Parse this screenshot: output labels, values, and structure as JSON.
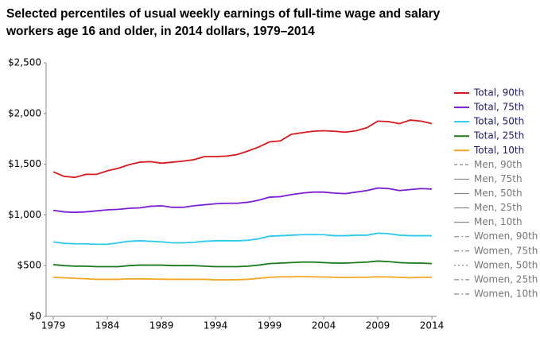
{
  "chart_data": {
    "type": "line",
    "title": [
      "Selected percentiles of usual weekly earnings of full-time wage and salary",
      "workers age 16 and older, in 2014 dollars, 1979–2014"
    ],
    "x": [
      1979,
      1980,
      1981,
      1982,
      1983,
      1984,
      1985,
      1986,
      1987,
      1988,
      1989,
      1990,
      1991,
      1992,
      1993,
      1994,
      1995,
      1996,
      1997,
      1998,
      1999,
      2000,
      2001,
      2002,
      2003,
      2004,
      2005,
      2006,
      2007,
      2008,
      2009,
      2010,
      2011,
      2012,
      2013,
      2014
    ],
    "xlim": [
      1979,
      2014
    ],
    "xticks": [
      1979,
      1984,
      1989,
      1994,
      1999,
      2004,
      2009,
      2014
    ],
    "ylim": [
      0,
      2500
    ],
    "yticks": [
      {
        "value": 0,
        "label": "$0"
      },
      {
        "value": 500,
        "label": "$500"
      },
      {
        "value": 1000,
        "label": "$1,000"
      },
      {
        "value": 1500,
        "label": "$1,500"
      },
      {
        "value": 2000,
        "label": "$2,000"
      },
      {
        "value": 2500,
        "label": "$2,500"
      }
    ],
    "grid": false,
    "legend": "right",
    "series": [
      {
        "name": "Total, 90th",
        "color": "#d7191c",
        "dash": "solid",
        "values": [
          1425,
          1380,
          1370,
          1400,
          1400,
          1435,
          1460,
          1495,
          1520,
          1525,
          1510,
          1520,
          1530,
          1545,
          1575,
          1575,
          1580,
          1595,
          1630,
          1670,
          1720,
          1730,
          1795,
          1810,
          1825,
          1830,
          1825,
          1815,
          1830,
          1860,
          1925,
          1920,
          1900,
          1935,
          1925,
          1900
        ]
      },
      {
        "name": "Total, 75th",
        "color": "#7b1fd6",
        "dash": "solid",
        "values": [
          1045,
          1030,
          1025,
          1030,
          1040,
          1050,
          1055,
          1065,
          1070,
          1085,
          1090,
          1075,
          1075,
          1090,
          1100,
          1110,
          1115,
          1115,
          1125,
          1145,
          1175,
          1180,
          1200,
          1215,
          1225,
          1225,
          1215,
          1210,
          1225,
          1240,
          1265,
          1260,
          1240,
          1250,
          1260,
          1255
        ]
      },
      {
        "name": "Total, 50th",
        "color": "#2bc9f0",
        "dash": "solid",
        "values": [
          735,
          720,
          715,
          715,
          710,
          710,
          725,
          740,
          745,
          740,
          735,
          725,
          725,
          730,
          740,
          745,
          745,
          745,
          750,
          765,
          790,
          795,
          800,
          805,
          805,
          805,
          795,
          795,
          800,
          800,
          820,
          815,
          800,
          795,
          795,
          795
        ]
      },
      {
        "name": "Total, 25th",
        "color": "#1a7a1a",
        "dash": "solid",
        "values": [
          510,
          500,
          495,
          495,
          490,
          490,
          490,
          500,
          505,
          505,
          505,
          500,
          500,
          500,
          495,
          490,
          490,
          490,
          495,
          505,
          520,
          525,
          530,
          535,
          535,
          530,
          525,
          525,
          530,
          535,
          545,
          540,
          530,
          525,
          525,
          520
        ]
      },
      {
        "name": "Total, 10th",
        "color": "#f5a623",
        "dash": "solid",
        "values": [
          385,
          380,
          375,
          370,
          365,
          365,
          365,
          370,
          370,
          368,
          366,
          365,
          365,
          365,
          365,
          360,
          360,
          362,
          365,
          375,
          385,
          390,
          390,
          392,
          390,
          388,
          385,
          382,
          385,
          385,
          390,
          388,
          385,
          380,
          385,
          385
        ]
      },
      {
        "name": "Men, 90th",
        "color": "#888888",
        "dash": "dashed",
        "values": [
          null,
          null,
          null,
          null,
          null,
          null,
          null,
          null,
          null,
          null,
          null,
          null,
          null,
          null,
          null,
          null,
          null,
          null,
          null,
          null,
          null,
          null,
          null,
          null,
          null,
          null,
          null,
          null,
          null,
          null,
          null,
          null,
          null,
          null,
          null,
          null
        ]
      },
      {
        "name": "Men, 75th",
        "color": "#888888",
        "dash": "solid",
        "values": [
          null,
          null,
          null,
          null,
          null,
          null,
          null,
          null,
          null,
          null,
          null,
          null,
          null,
          null,
          null,
          null,
          null,
          null,
          null,
          null,
          null,
          null,
          null,
          null,
          null,
          null,
          null,
          null,
          null,
          null,
          null,
          null,
          null,
          null,
          null,
          null
        ]
      },
      {
        "name": "Men, 50th",
        "color": "#888888",
        "dash": "solid",
        "values": [
          null,
          null,
          null,
          null,
          null,
          null,
          null,
          null,
          null,
          null,
          null,
          null,
          null,
          null,
          null,
          null,
          null,
          null,
          null,
          null,
          null,
          null,
          null,
          null,
          null,
          null,
          null,
          null,
          null,
          null,
          null,
          null,
          null,
          null,
          null,
          null
        ]
      },
      {
        "name": "Men, 25th",
        "color": "#888888",
        "dash": "solid",
        "values": [
          null,
          null,
          null,
          null,
          null,
          null,
          null,
          null,
          null,
          null,
          null,
          null,
          null,
          null,
          null,
          null,
          null,
          null,
          null,
          null,
          null,
          null,
          null,
          null,
          null,
          null,
          null,
          null,
          null,
          null,
          null,
          null,
          null,
          null,
          null,
          null
        ]
      },
      {
        "name": "Men, 10th",
        "color": "#888888",
        "dash": "solid",
        "values": [
          null,
          null,
          null,
          null,
          null,
          null,
          null,
          null,
          null,
          null,
          null,
          null,
          null,
          null,
          null,
          null,
          null,
          null,
          null,
          null,
          null,
          null,
          null,
          null,
          null,
          null,
          null,
          null,
          null,
          null,
          null,
          null,
          null,
          null,
          null,
          null
        ]
      },
      {
        "name": "Women, 90th",
        "color": "#888888",
        "dash": "dashdot",
        "values": [
          null,
          null,
          null,
          null,
          null,
          null,
          null,
          null,
          null,
          null,
          null,
          null,
          null,
          null,
          null,
          null,
          null,
          null,
          null,
          null,
          null,
          null,
          null,
          null,
          null,
          null,
          null,
          null,
          null,
          null,
          null,
          null,
          null,
          null,
          null,
          null
        ]
      },
      {
        "name": "Women, 75th",
        "color": "#888888",
        "dash": "dashdot",
        "values": [
          null,
          null,
          null,
          null,
          null,
          null,
          null,
          null,
          null,
          null,
          null,
          null,
          null,
          null,
          null,
          null,
          null,
          null,
          null,
          null,
          null,
          null,
          null,
          null,
          null,
          null,
          null,
          null,
          null,
          null,
          null,
          null,
          null,
          null,
          null,
          null
        ]
      },
      {
        "name": "Women, 50th",
        "color": "#888888",
        "dash": "dotted",
        "values": [
          null,
          null,
          null,
          null,
          null,
          null,
          null,
          null,
          null,
          null,
          null,
          null,
          null,
          null,
          null,
          null,
          null,
          null,
          null,
          null,
          null,
          null,
          null,
          null,
          null,
          null,
          null,
          null,
          null,
          null,
          null,
          null,
          null,
          null,
          null,
          null
        ]
      },
      {
        "name": "Women, 25th",
        "color": "#888888",
        "dash": "dashdot",
        "values": [
          null,
          null,
          null,
          null,
          null,
          null,
          null,
          null,
          null,
          null,
          null,
          null,
          null,
          null,
          null,
          null,
          null,
          null,
          null,
          null,
          null,
          null,
          null,
          null,
          null,
          null,
          null,
          null,
          null,
          null,
          null,
          null,
          null,
          null,
          null,
          null
        ]
      },
      {
        "name": "Women, 10th",
        "color": "#888888",
        "dash": "dashdot",
        "values": [
          null,
          null,
          null,
          null,
          null,
          null,
          null,
          null,
          null,
          null,
          null,
          null,
          null,
          null,
          null,
          null,
          null,
          null,
          null,
          null,
          null,
          null,
          null,
          null,
          null,
          null,
          null,
          null,
          null,
          null,
          null,
          null,
          null,
          null,
          null,
          null
        ]
      }
    ]
  }
}
